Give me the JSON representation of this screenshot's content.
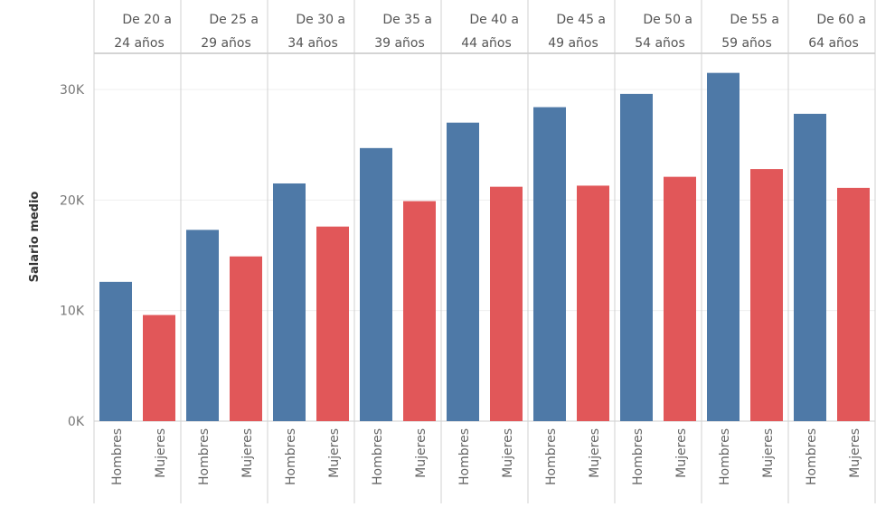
{
  "chart_data": {
    "type": "bar",
    "title": "",
    "xlabel": "",
    "ylabel": "Salario medio",
    "ylim": [
      0,
      33000
    ],
    "yticks": [
      0,
      10000,
      20000,
      30000
    ],
    "ytick_labels": [
      "0K",
      "10K",
      "20K",
      "30K"
    ],
    "grid": true,
    "legend": "none",
    "categories": [
      [
        "De 20 a",
        "24 años"
      ],
      [
        "De 25 a",
        "29 años"
      ],
      [
        "De 30 a",
        "34 años"
      ],
      [
        "De 35 a",
        "39 años"
      ],
      [
        "De 40 a",
        "44 años"
      ],
      [
        "De 45 a",
        "49 años"
      ],
      [
        "De 50 a",
        "54 años"
      ],
      [
        "De 55 a",
        "59 años"
      ],
      [
        "De 60 a",
        "64 años"
      ]
    ],
    "series": [
      {
        "name": "Hombres",
        "color": "#4e79a7",
        "values": [
          12600,
          17300,
          21500,
          24700,
          27000,
          28400,
          29600,
          31500,
          27800
        ]
      },
      {
        "name": "Mujeres",
        "color": "#e15759",
        "values": [
          9600,
          14900,
          17600,
          19900,
          21200,
          21300,
          22100,
          22800,
          21100
        ]
      }
    ]
  }
}
